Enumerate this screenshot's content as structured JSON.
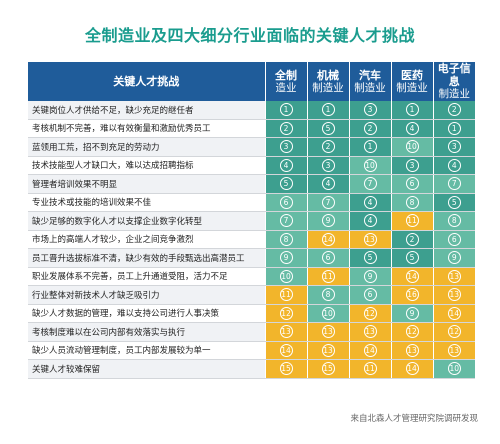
{
  "title": "全制造业及四大细分行业面临的关键人才挑战",
  "table": {
    "header_label": "关键人才挑战",
    "columns": [
      {
        "line1": "全制",
        "line2": "造业"
      },
      {
        "line1": "机械",
        "line2": "制造业"
      },
      {
        "line1": "汽车",
        "line2": "制造业"
      },
      {
        "line1": "医药",
        "line2": "制造业"
      },
      {
        "line1": "电子信息",
        "line2": "制造业"
      }
    ],
    "rows": [
      {
        "label": "关键岗位人才供给不足，缺少充足的继任者",
        "ranks": [
          1,
          1,
          3,
          1,
          2
        ]
      },
      {
        "label": "考核机制不完善，难以有效衡量和激励优秀员工",
        "ranks": [
          2,
          5,
          2,
          4,
          1
        ]
      },
      {
        "label": "蓝领用工荒，招不到充足的劳动力",
        "ranks": [
          3,
          2,
          1,
          10,
          3
        ]
      },
      {
        "label": "技术技能型人才缺口大，难以达成招聘指标",
        "ranks": [
          4,
          3,
          10,
          3,
          4
        ]
      },
      {
        "label": "管理者培训效果不明显",
        "ranks": [
          5,
          4,
          7,
          6,
          7
        ]
      },
      {
        "label": "专业技术或技能的培训效果不佳",
        "ranks": [
          6,
          7,
          4,
          8,
          5
        ]
      },
      {
        "label": "缺少足够的数字化人才以支撑企业数字化转型",
        "ranks": [
          7,
          9,
          4,
          11,
          8
        ]
      },
      {
        "label": "市场上的高端人才较少，企业之间竞争激烈",
        "ranks": [
          8,
          14,
          13,
          2,
          6
        ]
      },
      {
        "label": "员工晋升选拔标准不清，缺少有效的手段甄选出高潜员工",
        "ranks": [
          9,
          6,
          5,
          5,
          9
        ]
      },
      {
        "label": "职业发展体系不完善，员工上升通道受阻，活力不足",
        "ranks": [
          10,
          11,
          9,
          14,
          13
        ]
      },
      {
        "label": "行业整体对新技术人才缺乏吸引力",
        "ranks": [
          11,
          8,
          6,
          16,
          13
        ]
      },
      {
        "label": "缺少人才数据的管理，难以支持公司进行人事决策",
        "ranks": [
          12,
          10,
          12,
          9,
          14
        ]
      },
      {
        "label": "考核制度难以在公司内部有效落实与执行",
        "ranks": [
          13,
          13,
          13,
          12,
          12
        ]
      },
      {
        "label": "缺少人员流动管理制度，员工内部发展较为单一",
        "ranks": [
          14,
          13,
          14,
          13,
          13
        ]
      },
      {
        "label": "关键人才较难保留",
        "ranks": [
          15,
          15,
          11,
          14,
          10
        ]
      }
    ]
  },
  "source": "来自北森人才管理研究院调研发现",
  "colors": {
    "title": "#1a9c8e",
    "header_bg": "#1f5c9a",
    "rank_top": "#3d9f8f",
    "rank_mid": "#65bba4",
    "rank_low": "#f2b52b"
  }
}
